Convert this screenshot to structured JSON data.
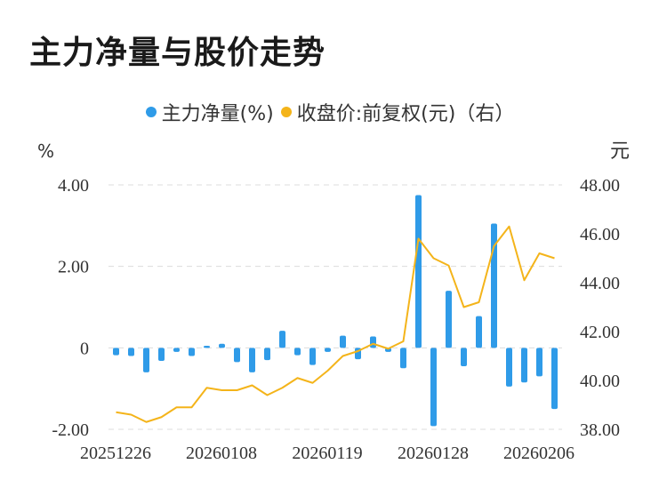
{
  "title": "主力净量与股价走势",
  "chart_data": {
    "type": "bar+line",
    "legend": [
      {
        "name": "主力净量(%)",
        "color": "#2f9be8"
      },
      {
        "name": "收盘价:前复权(元)（右）",
        "color": "#f4b41a"
      }
    ],
    "left_unit": "%",
    "right_unit": "元",
    "left_ticks": [
      "4.00",
      "2.00",
      "0",
      "-2.00"
    ],
    "right_ticks": [
      "48.00",
      "46.00",
      "44.00",
      "42.00",
      "40.00",
      "38.00"
    ],
    "ylim_left": [
      -2,
      4
    ],
    "ylim_right": [
      38,
      48
    ],
    "x_tick_labels": [
      "20251226",
      "20260108",
      "20260119",
      "20260128",
      "20260206"
    ],
    "bar_values": [
      -0.18,
      -0.2,
      -0.6,
      -0.32,
      -0.1,
      -0.2,
      0.05,
      0.1,
      -0.35,
      -0.6,
      -0.3,
      0.42,
      -0.18,
      -0.42,
      -0.1,
      0.3,
      -0.28,
      0.28,
      -0.1,
      -0.5,
      3.75,
      -1.92,
      1.4,
      -0.45,
      0.78,
      3.05,
      -0.95,
      -0.85,
      -0.7,
      -1.5
    ],
    "line_values": [
      38.7,
      38.6,
      38.3,
      38.5,
      38.9,
      38.9,
      39.7,
      39.6,
      39.6,
      39.8,
      39.4,
      39.7,
      40.1,
      39.9,
      40.4,
      41.0,
      41.2,
      41.5,
      41.3,
      41.6,
      45.8,
      45.0,
      44.7,
      43.0,
      43.2,
      45.5,
      46.3,
      44.1,
      45.2,
      45.0
    ],
    "grid": true
  }
}
